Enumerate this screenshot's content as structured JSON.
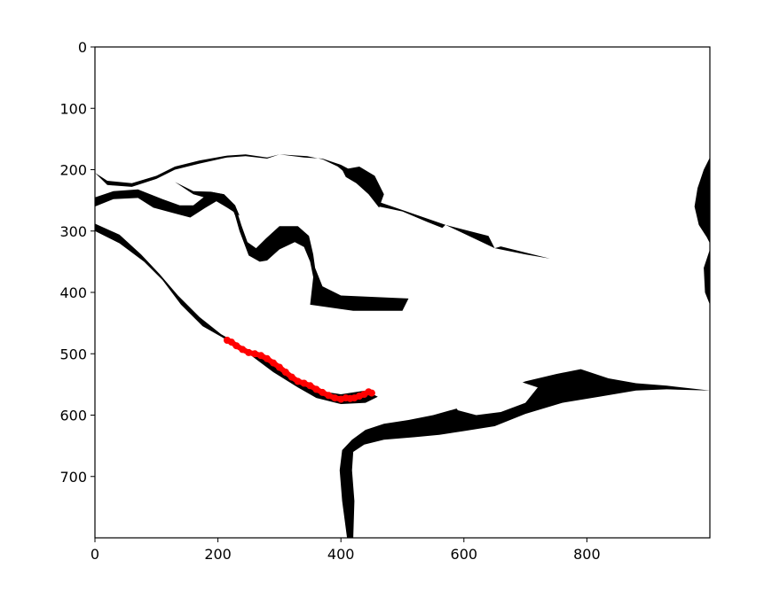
{
  "chart_data": {
    "type": "scatter",
    "title": "",
    "xlabel": "",
    "ylabel": "",
    "xlim": [
      0,
      1000
    ],
    "ylim": [
      800,
      0
    ],
    "y_inverted": true,
    "grid": false,
    "legend": "none",
    "x_ticks": [
      0,
      200,
      400,
      600,
      800
    ],
    "y_ticks": [
      0,
      100,
      200,
      300,
      400,
      500,
      600,
      700
    ],
    "colors": {
      "background": "#ffffff",
      "mask": "#000000",
      "trace": "#ff0000",
      "axes": "#000000"
    },
    "background_mask": {
      "description_free": true,
      "regions": [
        {
          "name": "main-water",
          "points": [
            [
              0,
              205
            ],
            [
              20,
              225
            ],
            [
              60,
              228
            ],
            [
              100,
              215
            ],
            [
              130,
              200
            ],
            [
              170,
              190
            ],
            [
              215,
              180
            ],
            [
              245,
              178
            ],
            [
              280,
              182
            ],
            [
              300,
              175
            ],
            [
              340,
              180
            ],
            [
              370,
              182
            ],
            [
              400,
              192
            ],
            [
              430,
              208
            ],
            [
              455,
              228
            ],
            [
              462,
              260
            ],
            [
              500,
              268
            ],
            [
              540,
              285
            ],
            [
              565,
              295
            ],
            [
              570,
              290
            ],
            [
              640,
              308
            ],
            [
              650,
              328
            ],
            [
              660,
              325
            ],
            [
              740,
              345
            ],
            [
              800,
              345
            ],
            [
              1000,
              340
            ],
            [
              1000,
              560
            ],
            [
              930,
              552
            ],
            [
              880,
              548
            ],
            [
              835,
              540
            ],
            [
              790,
              525
            ],
            [
              750,
              533
            ],
            [
              700,
              545
            ],
            [
              640,
              568
            ],
            [
              600,
              586
            ],
            [
              550,
              600
            ],
            [
              510,
              608
            ],
            [
              470,
              614
            ],
            [
              440,
              624
            ],
            [
              418,
              640
            ],
            [
              402,
              657
            ],
            [
              398,
              690
            ],
            [
              402,
              740
            ],
            [
              410,
              800
            ],
            [
              420,
              800
            ],
            [
              422,
              740
            ],
            [
              418,
              690
            ],
            [
              420,
              660
            ],
            [
              438,
              648
            ],
            [
              470,
              640
            ],
            [
              520,
              636
            ],
            [
              560,
              632
            ],
            [
              600,
              626
            ],
            [
              650,
              618
            ],
            [
              700,
              598
            ],
            [
              760,
              580
            ],
            [
              820,
              570
            ],
            [
              880,
              560
            ],
            [
              930,
              558
            ],
            [
              1000,
              560
            ],
            [
              1000,
              340
            ],
            [
              800,
              345
            ],
            [
              740,
              345
            ],
            [
              700,
              338
            ],
            [
              650,
              328
            ],
            [
              570,
              290
            ],
            [
              460,
              252
            ],
            [
              440,
              232
            ],
            [
              415,
              212
            ],
            [
              395,
              195
            ],
            [
              370,
              183
            ],
            [
              345,
              178
            ],
            [
              300,
              175
            ],
            [
              280,
              180
            ],
            [
              245,
              175
            ],
            [
              215,
              177
            ],
            [
              170,
              185
            ],
            [
              130,
              195
            ],
            [
              100,
              210
            ],
            [
              60,
              222
            ],
            [
              20,
              218
            ]
          ]
        },
        {
          "name": "lower-channel",
          "points": [
            [
              0,
              300
            ],
            [
              40,
              320
            ],
            [
              80,
              350
            ],
            [
              110,
              380
            ],
            [
              140,
              420
            ],
            [
              175,
              455
            ],
            [
              210,
              475
            ],
            [
              250,
              500
            ],
            [
              290,
              530
            ],
            [
              330,
              555
            ],
            [
              360,
              572
            ],
            [
              400,
              582
            ],
            [
              440,
              580
            ],
            [
              460,
              570
            ],
            [
              440,
              560
            ],
            [
              400,
              566
            ],
            [
              360,
              560
            ],
            [
              320,
              540
            ],
            [
              280,
              510
            ],
            [
              240,
              488
            ],
            [
              205,
              468
            ],
            [
              170,
              440
            ],
            [
              135,
              405
            ],
            [
              105,
              370
            ],
            [
              75,
              338
            ],
            [
              40,
              306
            ],
            [
              0,
              288
            ]
          ]
        },
        {
          "name": "upper-channel",
          "points": [
            [
              0,
              260
            ],
            [
              30,
              248
            ],
            [
              70,
              246
            ],
            [
              95,
              262
            ],
            [
              125,
              270
            ],
            [
              155,
              278
            ],
            [
              180,
              262
            ],
            [
              200,
              250
            ],
            [
              220,
              255
            ],
            [
              228,
              275
            ],
            [
              235,
              300
            ],
            [
              250,
              340
            ],
            [
              268,
              350
            ],
            [
              280,
              348
            ],
            [
              300,
              330
            ],
            [
              325,
              318
            ],
            [
              340,
              326
            ],
            [
              350,
              350
            ],
            [
              355,
              375
            ],
            [
              350,
              420
            ],
            [
              420,
              430
            ],
            [
              500,
              430
            ],
            [
              510,
              410
            ],
            [
              400,
              405
            ],
            [
              370,
              390
            ],
            [
              358,
              360
            ],
            [
              355,
              338
            ],
            [
              348,
              308
            ],
            [
              330,
              292
            ],
            [
              300,
              292
            ],
            [
              278,
              312
            ],
            [
              262,
              328
            ],
            [
              248,
              318
            ],
            [
              238,
              290
            ],
            [
              228,
              258
            ],
            [
              210,
              240
            ],
            [
              188,
              236
            ],
            [
              160,
              258
            ],
            [
              138,
              258
            ],
            [
              110,
              248
            ],
            [
              70,
              232
            ],
            [
              30,
              235
            ],
            [
              0,
              245
            ]
          ]
        },
        {
          "name": "side-inlet",
          "points": [
            [
              402,
              200
            ],
            [
              430,
              195
            ],
            [
              455,
              210
            ],
            [
              470,
              240
            ],
            [
              462,
              262
            ],
            [
              445,
              240
            ],
            [
              425,
              222
            ],
            [
              408,
              212
            ]
          ]
        },
        {
          "name": "right-edge-lobe",
          "points": [
            [
              1000,
              180
            ],
            [
              990,
              200
            ],
            [
              980,
              230
            ],
            [
              975,
              260
            ],
            [
              982,
              290
            ],
            [
              995,
              310
            ],
            [
              1000,
              320
            ]
          ]
        },
        {
          "name": "right-edge-lobe-2",
          "points": [
            [
              1000,
              330
            ],
            [
              990,
              360
            ],
            [
              992,
              400
            ],
            [
              1000,
              420
            ]
          ]
        },
        {
          "name": "hook-channel",
          "points": [
            [
              130,
              220
            ],
            [
              160,
              240
            ],
            [
              195,
              250
            ],
            [
              215,
              262
            ],
            [
              235,
              275
            ],
            [
              228,
              258
            ],
            [
              210,
              240
            ],
            [
              188,
              236
            ],
            [
              160,
              235
            ]
          ]
        }
      ],
      "holes": [
        {
          "name": "island-lower",
          "points": [
            [
              245,
              478
            ],
            [
              260,
              485
            ],
            [
              300,
              508
            ],
            [
              330,
              530
            ],
            [
              355,
              550
            ],
            [
              385,
              560
            ],
            [
              415,
              558
            ],
            [
              440,
              545
            ],
            [
              420,
              520
            ],
            [
              395,
              495
            ],
            [
              370,
              480
            ],
            [
              330,
              472
            ],
            [
              290,
              472
            ],
            [
              262,
              474
            ]
          ]
        },
        {
          "name": "island-east",
          "points": [
            [
              575,
              570
            ],
            [
              600,
              560
            ],
            [
              650,
              548
            ],
            [
              690,
              545
            ],
            [
              720,
              555
            ],
            [
              700,
              580
            ],
            [
              660,
              595
            ],
            [
              620,
              600
            ],
            [
              590,
              592
            ]
          ]
        },
        {
          "name": "island-small",
          "points": [
            [
              835,
              458
            ],
            [
              850,
              445
            ],
            [
              870,
              448
            ],
            [
              895,
              460
            ],
            [
              875,
              475
            ],
            [
              850,
              475
            ]
          ]
        },
        {
          "name": "island-tiny",
          "points": [
            [
              440,
              598
            ],
            [
              460,
              592
            ],
            [
              478,
              600
            ],
            [
              465,
              610
            ],
            [
              445,
              610
            ]
          ]
        },
        {
          "name": "island-north",
          "points": [
            [
              330,
              228
            ],
            [
              360,
              222
            ],
            [
              380,
              226
            ],
            [
              370,
              238
            ],
            [
              340,
              240
            ]
          ]
        }
      ]
    },
    "series": [
      {
        "color": "#ff0000",
        "x": [
          215,
          222,
          230,
          240,
          250,
          260,
          270,
          280,
          290,
          300,
          310,
          320,
          330,
          340,
          350,
          360,
          370,
          380,
          390,
          400,
          408,
          415,
          422,
          430,
          438,
          445,
          450
        ],
        "y": [
          478,
          481,
          487,
          493,
          498,
          500,
          503,
          508,
          515,
          522,
          530,
          538,
          545,
          548,
          552,
          558,
          563,
          568,
          572,
          574,
          572,
          573,
          572,
          569,
          566,
          562,
          564
        ]
      }
    ]
  }
}
